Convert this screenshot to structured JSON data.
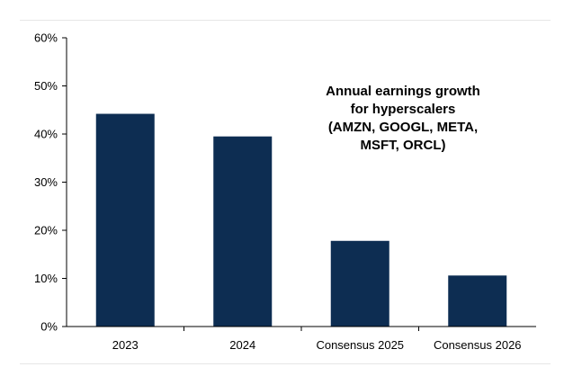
{
  "chart_data": {
    "type": "bar",
    "title_lines": [
      "Annual earnings growth",
      "for hyperscalers",
      "(AMZN, GOOGL, META,",
      "MSFT, ORCL)"
    ],
    "categories": [
      "2023",
      "2024",
      "Consensus 2025",
      "Consensus 2026"
    ],
    "values": [
      44.2,
      39.5,
      17.8,
      10.6
    ],
    "ylim": [
      0,
      60
    ],
    "yticks": [
      0,
      10,
      20,
      30,
      40,
      50,
      60
    ],
    "ytick_labels": [
      "0%",
      "10%",
      "20%",
      "30%",
      "40%",
      "50%",
      "60%"
    ],
    "xlabel": "",
    "ylabel": "",
    "bar_color": "#0d2d52",
    "grid": false
  }
}
